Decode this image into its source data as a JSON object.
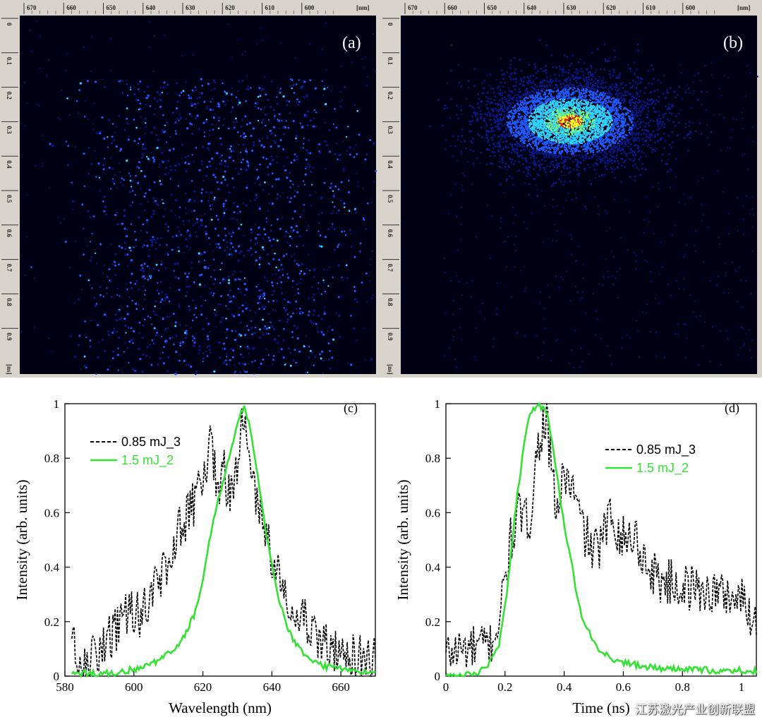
{
  "streak_panels": [
    {
      "label": "(a)",
      "top_axis_ticks": [
        "670",
        "660",
        "650",
        "640",
        "630",
        "620",
        "610",
        "600"
      ],
      "top_axis_unit": "[nm]",
      "left_axis_ticks": [
        "0",
        "0.1",
        "0.2",
        "0.3",
        "0.4",
        "0.5",
        "0.6",
        "0.7",
        "0.8",
        "0.9"
      ],
      "left_axis_unit": "[ns]",
      "colormap": [
        "#000014",
        "#0a1a8c",
        "#1e5aff",
        "#30d0ff",
        "#7dff7d",
        "#ffff30",
        "#ff2000"
      ]
    },
    {
      "label": "(b)",
      "top_axis_ticks": [
        "670",
        "660",
        "650",
        "640",
        "630",
        "620",
        "610",
        "600"
      ],
      "top_axis_unit": "[nm]",
      "left_axis_ticks": [
        "0",
        "0.1",
        "0.2",
        "0.3",
        "0.4",
        "0.5",
        "0.6",
        "0.7",
        "0.8",
        "0.9"
      ],
      "left_axis_unit": "[ns]",
      "colormap": [
        "#000014",
        "#0a1a8c",
        "#1e5aff",
        "#30d0ff",
        "#7dff7d",
        "#ffff30",
        "#ff2000"
      ]
    }
  ],
  "chart_data": [
    {
      "type": "line",
      "label": "(c)",
      "xlabel": "Wavelength (nm)",
      "ylabel": "Intensity (arb. units)",
      "xlim": [
        580,
        670
      ],
      "ylim": [
        0,
        1
      ],
      "xticks": [
        580,
        600,
        620,
        640,
        660
      ],
      "yticks": [
        0,
        0.2,
        0.4,
        0.6,
        0.8,
        1
      ],
      "ytick_labels": [
        "0",
        "0.2",
        "0.4",
        "0.6",
        "0.8",
        "1"
      ],
      "series": [
        {
          "name": "0.85 mJ_3",
          "style": "dashed",
          "color": "#000000",
          "x": [
            582,
            584,
            586,
            588,
            590,
            592,
            594,
            596,
            598,
            600,
            602,
            604,
            606,
            608,
            610,
            612,
            614,
            616,
            618,
            620,
            622,
            624,
            626,
            628,
            630,
            632,
            634,
            636,
            638,
            640,
            642,
            644,
            646,
            648,
            650,
            652,
            654,
            656,
            658,
            660,
            662,
            664,
            666,
            668,
            670
          ],
          "y": [
            0.15,
            0.05,
            0.04,
            0.06,
            0.08,
            0.12,
            0.15,
            0.18,
            0.22,
            0.24,
            0.21,
            0.28,
            0.32,
            0.38,
            0.42,
            0.5,
            0.55,
            0.6,
            0.65,
            0.72,
            0.85,
            0.7,
            0.75,
            0.65,
            0.8,
            0.95,
            0.75,
            0.6,
            0.55,
            0.45,
            0.38,
            0.3,
            0.28,
            0.25,
            0.2,
            0.18,
            0.14,
            0.12,
            0.1,
            0.09,
            0.08,
            0.07,
            0.06,
            0.05,
            0.06
          ]
        },
        {
          "name": "1.5 mJ_2",
          "style": "solid",
          "color": "#33e233",
          "x": [
            582,
            586,
            590,
            594,
            598,
            602,
            606,
            610,
            614,
            618,
            620,
            622,
            624,
            626,
            628,
            630,
            632,
            634,
            636,
            638,
            640,
            642,
            644,
            646,
            648,
            650,
            654,
            658,
            662,
            666,
            670
          ],
          "y": [
            0.01,
            0.01,
            0.01,
            0.01,
            0.02,
            0.03,
            0.05,
            0.08,
            0.13,
            0.24,
            0.35,
            0.5,
            0.62,
            0.72,
            0.82,
            0.93,
            0.99,
            0.9,
            0.72,
            0.55,
            0.4,
            0.28,
            0.2,
            0.14,
            0.1,
            0.07,
            0.04,
            0.03,
            0.02,
            0.02,
            0.01
          ]
        }
      ],
      "legend": "top-left"
    },
    {
      "type": "line",
      "label": "(d)",
      "xlabel": "Time (ns)",
      "ylabel": "Intensity (arb. units)",
      "xlim": [
        0,
        1.05
      ],
      "ylim": [
        0,
        1
      ],
      "xticks": [
        0,
        0.2,
        0.4,
        0.6,
        0.8,
        1.0
      ],
      "xtick_labels": [
        "0",
        "0.2",
        "0.4",
        "0.6",
        "0.8",
        "1"
      ],
      "yticks": [
        0,
        0.2,
        0.4,
        0.6,
        0.8,
        1
      ],
      "ytick_labels": [
        "0",
        "0.2",
        "0.4",
        "0.6",
        "0.8",
        "1"
      ],
      "series": [
        {
          "name": "0.85 mJ_3",
          "style": "dashed",
          "color": "#000000",
          "x": [
            0.0,
            0.05,
            0.1,
            0.15,
            0.18,
            0.2,
            0.22,
            0.25,
            0.28,
            0.3,
            0.32,
            0.34,
            0.36,
            0.38,
            0.4,
            0.43,
            0.46,
            0.5,
            0.53,
            0.56,
            0.6,
            0.64,
            0.68,
            0.72,
            0.76,
            0.8,
            0.85,
            0.9,
            0.95,
            1.0,
            1.05
          ],
          "y": [
            0.08,
            0.1,
            0.1,
            0.12,
            0.2,
            0.35,
            0.5,
            0.6,
            0.55,
            0.75,
            0.9,
            0.95,
            0.7,
            0.6,
            0.75,
            0.68,
            0.55,
            0.45,
            0.5,
            0.6,
            0.5,
            0.52,
            0.4,
            0.36,
            0.34,
            0.33,
            0.32,
            0.31,
            0.3,
            0.28,
            0.2
          ]
        },
        {
          "name": "1.5 mJ_2",
          "style": "solid",
          "color": "#33e233",
          "x": [
            0.0,
            0.05,
            0.1,
            0.14,
            0.18,
            0.2,
            0.22,
            0.24,
            0.26,
            0.28,
            0.3,
            0.32,
            0.34,
            0.36,
            0.38,
            0.4,
            0.42,
            0.44,
            0.46,
            0.5,
            0.55,
            0.6,
            0.7,
            0.8,
            0.9,
            1.0,
            1.05
          ],
          "y": [
            0.0,
            0.0,
            0.01,
            0.04,
            0.12,
            0.25,
            0.45,
            0.65,
            0.82,
            0.95,
            0.98,
            0.99,
            0.97,
            0.85,
            0.7,
            0.55,
            0.45,
            0.32,
            0.22,
            0.12,
            0.07,
            0.05,
            0.03,
            0.03,
            0.02,
            0.02,
            0.02
          ]
        }
      ],
      "legend": "top-right"
    }
  ],
  "watermark": "江苏激光产业创新联盟"
}
